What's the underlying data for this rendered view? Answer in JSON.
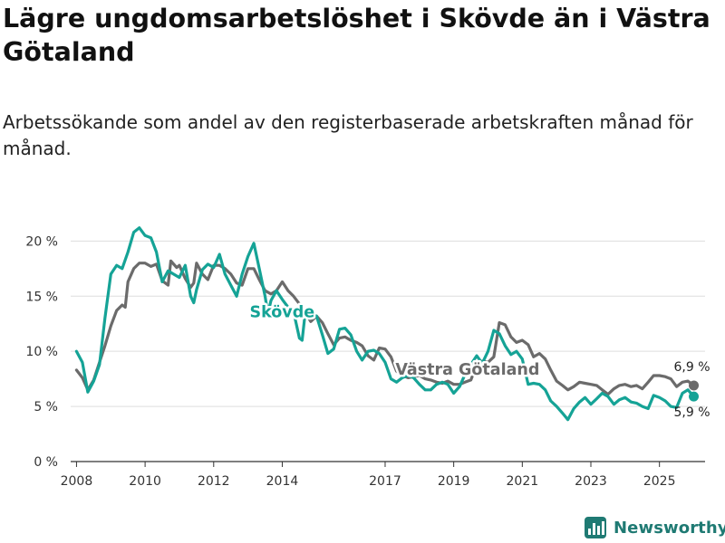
{
  "header": {
    "title": "Lägre ungdomsarbetslöshet i Skövde än i Västra Götaland",
    "subtitle": "Arbetssökande som andel av den registerbaserade arbetskraften månad för månad."
  },
  "branding": {
    "name": "Newsworthy",
    "icon": "bar-chart-icon"
  },
  "chart_data": {
    "type": "line",
    "title": "Lägre ungdomsarbetslöshet i Skövde än i Västra Götaland",
    "subtitle": "Arbetssökande som andel av den registerbaserade arbetskraften månad för månad.",
    "xlabel": "",
    "ylabel": "",
    "xlim": [
      2007.83,
      2026.33
    ],
    "ylim": [
      0,
      22
    ],
    "grid": true,
    "x_ticks": [
      {
        "value": 2008,
        "label": "2008"
      },
      {
        "value": 2010,
        "label": "2010"
      },
      {
        "value": 2012,
        "label": "2012"
      },
      {
        "value": 2014,
        "label": "2014"
      },
      {
        "value": 2017,
        "label": "2017"
      },
      {
        "value": 2019,
        "label": "2019"
      },
      {
        "value": 2021,
        "label": "2021"
      },
      {
        "value": 2023,
        "label": "2023"
      },
      {
        "value": 2025,
        "label": "2025"
      }
    ],
    "y_ticks": [
      {
        "value": 0,
        "label": "0 %"
      },
      {
        "value": 5,
        "label": "5 %"
      },
      {
        "value": 10,
        "label": "10 %"
      },
      {
        "value": 15,
        "label": "15 %"
      },
      {
        "value": 20,
        "label": "20 %"
      }
    ],
    "series": [
      {
        "name": "Västra Götaland",
        "color": "#6b6b6b",
        "label": "Västra Götaland",
        "label_at": [
          2017.3,
          7.9
        ],
        "end_value_label": "6,9 %",
        "points": [
          [
            2008.0,
            8.3
          ],
          [
            2008.17,
            7.6
          ],
          [
            2008.33,
            6.5
          ],
          [
            2008.5,
            7.4
          ],
          [
            2008.67,
            9.0
          ],
          [
            2008.83,
            10.5
          ],
          [
            2009.0,
            12.3
          ],
          [
            2009.17,
            13.7
          ],
          [
            2009.33,
            14.2
          ],
          [
            2009.42,
            14.0
          ],
          [
            2009.5,
            16.3
          ],
          [
            2009.67,
            17.5
          ],
          [
            2009.83,
            18.0
          ],
          [
            2010.0,
            18.0
          ],
          [
            2010.17,
            17.7
          ],
          [
            2010.33,
            17.9
          ],
          [
            2010.5,
            16.4
          ],
          [
            2010.67,
            16.0
          ],
          [
            2010.75,
            18.2
          ],
          [
            2010.92,
            17.6
          ],
          [
            2011.0,
            17.8
          ],
          [
            2011.17,
            16.6
          ],
          [
            2011.33,
            15.8
          ],
          [
            2011.42,
            16.2
          ],
          [
            2011.5,
            18.0
          ],
          [
            2011.67,
            17.0
          ],
          [
            2011.83,
            16.5
          ],
          [
            2012.0,
            17.8
          ],
          [
            2012.17,
            17.8
          ],
          [
            2012.33,
            17.5
          ],
          [
            2012.5,
            17.0
          ],
          [
            2012.67,
            16.2
          ],
          [
            2012.83,
            16.0
          ],
          [
            2013.0,
            17.5
          ],
          [
            2013.17,
            17.5
          ],
          [
            2013.33,
            16.5
          ],
          [
            2013.5,
            15.5
          ],
          [
            2013.67,
            15.2
          ],
          [
            2013.83,
            15.5
          ],
          [
            2014.0,
            16.3
          ],
          [
            2014.17,
            15.5
          ],
          [
            2014.33,
            15.0
          ],
          [
            2014.5,
            14.3
          ],
          [
            2014.67,
            13.5
          ],
          [
            2014.83,
            12.7
          ],
          [
            2015.0,
            13.2
          ],
          [
            2015.17,
            12.6
          ],
          [
            2015.33,
            11.6
          ],
          [
            2015.5,
            10.6
          ],
          [
            2015.67,
            11.2
          ],
          [
            2015.83,
            11.3
          ],
          [
            2016.0,
            11.0
          ],
          [
            2016.17,
            10.8
          ],
          [
            2016.33,
            10.5
          ],
          [
            2016.5,
            9.6
          ],
          [
            2016.67,
            9.2
          ],
          [
            2016.83,
            10.3
          ],
          [
            2017.0,
            10.2
          ],
          [
            2017.17,
            9.5
          ],
          [
            2017.33,
            8.2
          ],
          [
            2017.5,
            7.8
          ],
          [
            2017.67,
            7.6
          ],
          [
            2017.83,
            7.7
          ],
          [
            2018.0,
            7.8
          ],
          [
            2018.17,
            7.5
          ],
          [
            2018.33,
            7.4
          ],
          [
            2018.5,
            7.2
          ],
          [
            2018.67,
            7.1
          ],
          [
            2018.83,
            7.3
          ],
          [
            2019.0,
            7.0
          ],
          [
            2019.17,
            7.0
          ],
          [
            2019.33,
            7.2
          ],
          [
            2019.5,
            7.4
          ],
          [
            2019.67,
            8.8
          ],
          [
            2019.83,
            9.1
          ],
          [
            2020.0,
            9.0
          ],
          [
            2020.17,
            9.5
          ],
          [
            2020.33,
            12.6
          ],
          [
            2020.5,
            12.4
          ],
          [
            2020.67,
            11.3
          ],
          [
            2020.83,
            10.8
          ],
          [
            2021.0,
            11.0
          ],
          [
            2021.17,
            10.6
          ],
          [
            2021.33,
            9.5
          ],
          [
            2021.5,
            9.8
          ],
          [
            2021.67,
            9.3
          ],
          [
            2021.83,
            8.3
          ],
          [
            2022.0,
            7.3
          ],
          [
            2022.17,
            6.9
          ],
          [
            2022.33,
            6.5
          ],
          [
            2022.5,
            6.8
          ],
          [
            2022.67,
            7.2
          ],
          [
            2022.83,
            7.1
          ],
          [
            2023.0,
            7.0
          ],
          [
            2023.17,
            6.9
          ],
          [
            2023.33,
            6.5
          ],
          [
            2023.5,
            6.1
          ],
          [
            2023.67,
            6.6
          ],
          [
            2023.83,
            6.9
          ],
          [
            2024.0,
            7.0
          ],
          [
            2024.17,
            6.8
          ],
          [
            2024.33,
            6.9
          ],
          [
            2024.5,
            6.6
          ],
          [
            2024.67,
            7.2
          ],
          [
            2024.83,
            7.8
          ],
          [
            2025.0,
            7.8
          ],
          [
            2025.17,
            7.7
          ],
          [
            2025.33,
            7.5
          ],
          [
            2025.5,
            6.8
          ],
          [
            2025.67,
            7.2
          ],
          [
            2025.83,
            7.3
          ],
          [
            2026.0,
            6.9
          ]
        ]
      },
      {
        "name": "Skövde",
        "color": "#15a396",
        "label": "Skövde",
        "label_at": [
          2013.05,
          13.1
        ],
        "end_value_label": "5,9 %",
        "points": [
          [
            2008.0,
            10.0
          ],
          [
            2008.17,
            9.0
          ],
          [
            2008.33,
            6.3
          ],
          [
            2008.5,
            7.3
          ],
          [
            2008.67,
            8.8
          ],
          [
            2008.83,
            13.0
          ],
          [
            2009.0,
            17.0
          ],
          [
            2009.17,
            17.8
          ],
          [
            2009.33,
            17.5
          ],
          [
            2009.5,
            19.0
          ],
          [
            2009.67,
            20.8
          ],
          [
            2009.83,
            21.2
          ],
          [
            2010.0,
            20.5
          ],
          [
            2010.17,
            20.3
          ],
          [
            2010.33,
            19.0
          ],
          [
            2010.5,
            16.3
          ],
          [
            2010.67,
            17.3
          ],
          [
            2010.83,
            17.0
          ],
          [
            2011.0,
            16.7
          ],
          [
            2011.17,
            17.8
          ],
          [
            2011.33,
            15.0
          ],
          [
            2011.42,
            14.4
          ],
          [
            2011.5,
            15.6
          ],
          [
            2011.67,
            17.4
          ],
          [
            2011.83,
            17.9
          ],
          [
            2012.0,
            17.6
          ],
          [
            2012.17,
            18.8
          ],
          [
            2012.33,
            17.0
          ],
          [
            2012.5,
            16.0
          ],
          [
            2012.67,
            15.0
          ],
          [
            2012.83,
            17.0
          ],
          [
            2013.0,
            18.6
          ],
          [
            2013.17,
            19.8
          ],
          [
            2013.33,
            17.5
          ],
          [
            2013.5,
            15.0
          ],
          [
            2013.58,
            13.4
          ],
          [
            2013.67,
            14.6
          ],
          [
            2013.83,
            15.5
          ],
          [
            2014.0,
            14.7
          ],
          [
            2014.17,
            14.0
          ],
          [
            2014.33,
            13.6
          ],
          [
            2014.5,
            11.2
          ],
          [
            2014.58,
            11.0
          ],
          [
            2014.67,
            13.5
          ],
          [
            2014.83,
            13.4
          ],
          [
            2015.0,
            13.2
          ],
          [
            2015.17,
            11.5
          ],
          [
            2015.33,
            9.8
          ],
          [
            2015.5,
            10.2
          ],
          [
            2015.67,
            12.0
          ],
          [
            2015.83,
            12.1
          ],
          [
            2016.0,
            11.5
          ],
          [
            2016.17,
            10.0
          ],
          [
            2016.33,
            9.2
          ],
          [
            2016.5,
            10.0
          ],
          [
            2016.67,
            10.1
          ],
          [
            2016.83,
            9.8
          ],
          [
            2017.0,
            9.0
          ],
          [
            2017.17,
            7.5
          ],
          [
            2017.33,
            7.2
          ],
          [
            2017.5,
            7.6
          ],
          [
            2017.67,
            7.8
          ],
          [
            2017.83,
            7.6
          ],
          [
            2018.0,
            7.0
          ],
          [
            2018.17,
            6.5
          ],
          [
            2018.33,
            6.5
          ],
          [
            2018.5,
            7.0
          ],
          [
            2018.67,
            7.2
          ],
          [
            2018.83,
            7.0
          ],
          [
            2019.0,
            6.2
          ],
          [
            2019.17,
            6.8
          ],
          [
            2019.33,
            7.9
          ],
          [
            2019.5,
            8.8
          ],
          [
            2019.67,
            9.6
          ],
          [
            2019.83,
            8.9
          ],
          [
            2020.0,
            10.0
          ],
          [
            2020.17,
            11.9
          ],
          [
            2020.33,
            11.6
          ],
          [
            2020.5,
            10.5
          ],
          [
            2020.67,
            9.7
          ],
          [
            2020.83,
            10.0
          ],
          [
            2021.0,
            9.3
          ],
          [
            2021.17,
            7.0
          ],
          [
            2021.33,
            7.1
          ],
          [
            2021.5,
            7.0
          ],
          [
            2021.67,
            6.5
          ],
          [
            2021.83,
            5.5
          ],
          [
            2022.0,
            5.0
          ],
          [
            2022.17,
            4.4
          ],
          [
            2022.33,
            3.8
          ],
          [
            2022.5,
            4.8
          ],
          [
            2022.67,
            5.4
          ],
          [
            2022.83,
            5.8
          ],
          [
            2023.0,
            5.2
          ],
          [
            2023.17,
            5.7
          ],
          [
            2023.33,
            6.2
          ],
          [
            2023.5,
            5.9
          ],
          [
            2023.67,
            5.2
          ],
          [
            2023.83,
            5.6
          ],
          [
            2024.0,
            5.8
          ],
          [
            2024.17,
            5.4
          ],
          [
            2024.33,
            5.3
          ],
          [
            2024.5,
            5.0
          ],
          [
            2024.67,
            4.8
          ],
          [
            2024.83,
            6.0
          ],
          [
            2025.0,
            5.8
          ],
          [
            2025.17,
            5.5
          ],
          [
            2025.33,
            5.0
          ],
          [
            2025.5,
            4.9
          ],
          [
            2025.67,
            6.2
          ],
          [
            2025.83,
            6.5
          ],
          [
            2026.0,
            5.9
          ]
        ]
      }
    ]
  }
}
